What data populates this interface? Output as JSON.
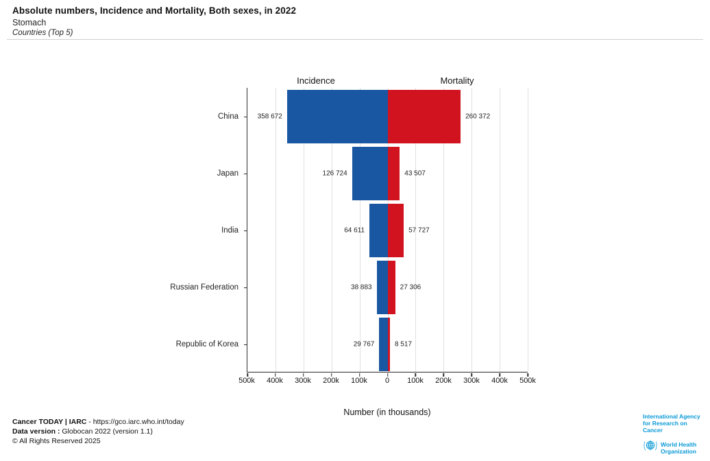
{
  "header": {
    "title": "Absolute numbers, Incidence and Mortality, Both sexes, in 2022",
    "subtitle": "Stomach",
    "scope": "Countries (Top 5)"
  },
  "chart_data": {
    "type": "bar",
    "variant": "diverging-horizontal",
    "categories": [
      "China",
      "Japan",
      "India",
      "Russian Federation",
      "Republic of Korea"
    ],
    "series": [
      {
        "name": "Incidence",
        "side": "left",
        "color": "#1a57a3",
        "values": [
          358672,
          126724,
          64611,
          38883,
          29767
        ],
        "labels": [
          "358 672",
          "126 724",
          "64 611",
          "38 883",
          "29 767"
        ]
      },
      {
        "name": "Mortality",
        "side": "right",
        "color": "#d1121f",
        "values": [
          260372,
          43507,
          57727,
          27306,
          8517
        ],
        "labels": [
          "260 372",
          "43 507",
          "57 727",
          "27 306",
          "8 517"
        ]
      }
    ],
    "xlabel": "Number (in thousands)",
    "axis_max": 500000,
    "x_ticks": [
      "500k",
      "400k",
      "300k",
      "200k",
      "100k",
      "0",
      "100k",
      "200k",
      "300k",
      "400k",
      "500k"
    ],
    "grid": true,
    "legend_position": "top"
  },
  "footer": {
    "line1_bold": "Cancer TODAY | IARC",
    "line1_rest": " - https://gco.iarc.who.int/today",
    "line2_bold": "Data version : ",
    "line2_rest": "Globocan 2022 (version 1.1)",
    "line3": "© All Rights Reserved 2025"
  },
  "logos": {
    "iarc_line1": "International Agency",
    "iarc_line2": "for Research on Cancer",
    "who_line1": "World Health",
    "who_line2": "Organization",
    "brand_blue": "#0a9ad6"
  }
}
